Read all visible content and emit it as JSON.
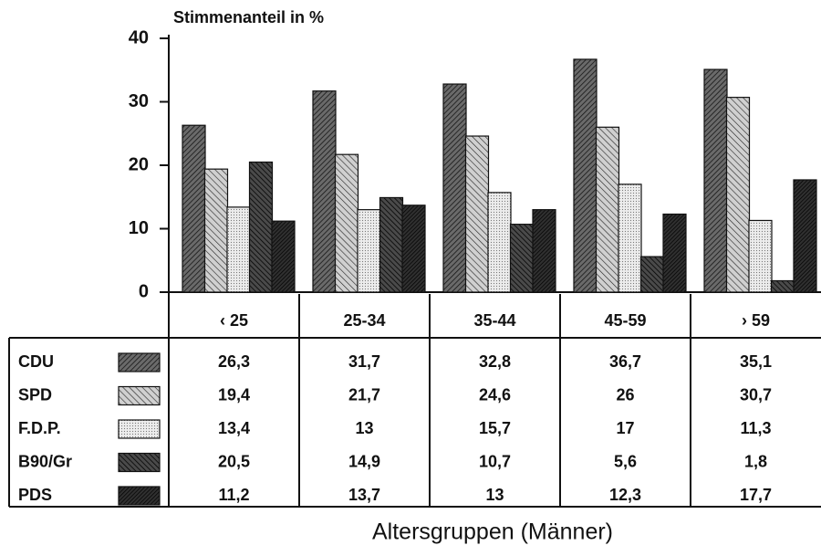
{
  "chart_data": {
    "type": "bar",
    "title": "Stimmenanteil in %",
    "x_label": "Altersgruppen (Männer)",
    "categories": [
      "‹ 25",
      "25-34",
      "35-44",
      "45-59",
      "› 59"
    ],
    "series": [
      {
        "name": "CDU",
        "color": "#6a6a6a",
        "values": [
          26.3,
          31.7,
          32.8,
          36.7,
          35.1
        ],
        "value_labels": [
          "26,3",
          "31,7",
          "32,8",
          "36,7",
          "35,1"
        ]
      },
      {
        "name": "SPD",
        "color": "#d0d0d0",
        "values": [
          19.4,
          21.7,
          24.6,
          26,
          30.7
        ],
        "value_labels": [
          "19,4",
          "21,7",
          "24,6",
          "26",
          "30,7"
        ]
      },
      {
        "name": "F.D.P.",
        "color": "#ececec",
        "values": [
          13.4,
          13,
          15.7,
          17,
          11.3
        ],
        "value_labels": [
          "13,4",
          "13",
          "15,7",
          "17",
          "11,3"
        ]
      },
      {
        "name": "B90/Gr",
        "color": "#4a4a4a",
        "values": [
          20.5,
          14.9,
          10.7,
          5.6,
          1.8
        ],
        "value_labels": [
          "20,5",
          "14,9",
          "10,7",
          "5,6",
          "1,8"
        ]
      },
      {
        "name": "PDS",
        "color": "#303030",
        "values": [
          11.2,
          13.7,
          13,
          12.3,
          17.7
        ],
        "value_labels": [
          "11,2",
          "13,7",
          "13",
          "12,3",
          "17,7"
        ]
      }
    ],
    "ylim": [
      0,
      40
    ],
    "yticks": [
      0,
      10,
      20,
      30,
      40
    ]
  }
}
